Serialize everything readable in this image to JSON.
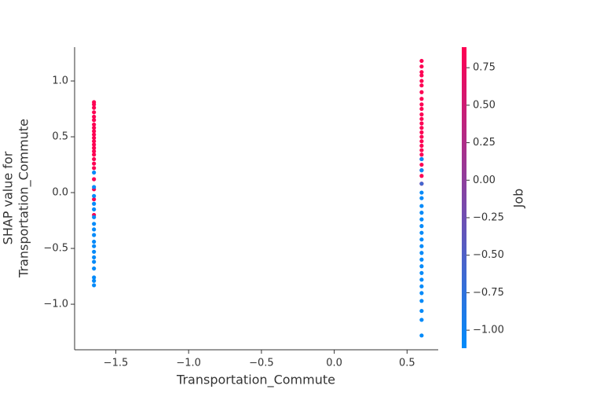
{
  "chart_data": {
    "type": "scatter",
    "xlabel": "Transportation_Commute",
    "ylabel_lines": [
      "SHAP value for",
      "Transportation_Commute"
    ],
    "colorbar_label": "Job",
    "colormap": [
      "#008bfb",
      "#ff0052"
    ],
    "xlim": [
      -1.783,
      0.714
    ],
    "ylim": [
      -1.408,
      1.303
    ],
    "clim": [
      -1.12,
      0.887
    ],
    "xticks": [
      {
        "value": -1.5,
        "label": "−1.5"
      },
      {
        "value": -1.0,
        "label": "−1.0"
      },
      {
        "value": -0.5,
        "label": "−0.5"
      },
      {
        "value": 0.0,
        "label": "0.0"
      },
      0.5
    ],
    "yticks": [
      {
        "value": -1.0,
        "label": "−1.0"
      },
      {
        "value": -0.5,
        "label": "−0.5"
      },
      {
        "value": 0.0,
        "label": "0.0"
      },
      0.5,
      {
        "value": 1.0,
        "label": "1.0"
      }
    ],
    "cticks": [
      {
        "value": -1.0,
        "label": "−1.00"
      },
      {
        "value": -0.75,
        "label": "−0.75"
      },
      {
        "value": -0.5,
        "label": "−0.50"
      },
      {
        "value": -0.25,
        "label": "−0.25"
      },
      {
        "value": 0.0,
        "label": "0.00"
      },
      0.25,
      {
        "value": 0.5,
        "label": "0.50"
      },
      0.75
    ],
    "x": [
      -1.65,
      -1.65,
      -1.65,
      -1.65,
      -1.65,
      -1.65,
      -1.65,
      -1.65,
      -1.65,
      -1.65,
      -1.65,
      -1.65,
      -1.65,
      -1.65,
      -1.65,
      -1.65,
      -1.65,
      -1.65,
      -1.65,
      -1.65,
      -1.65,
      -1.65,
      -1.65,
      -1.65,
      -1.65,
      -1.65,
      -1.65,
      -1.65,
      -1.65,
      -1.65,
      -1.65,
      -1.65,
      -1.65,
      -1.65,
      -1.65,
      -1.65,
      -1.65,
      -1.65,
      -1.65,
      -1.65,
      -1.65,
      0.6,
      0.6,
      0.6,
      0.6,
      0.6,
      0.6,
      0.6,
      0.6,
      0.6,
      0.6,
      0.6,
      0.6,
      0.6,
      0.6,
      0.6,
      0.6,
      0.6,
      0.6,
      0.6,
      0.6,
      0.6,
      0.6,
      0.6,
      0.6,
      0.6,
      0.6,
      0.6,
      0.6,
      0.6,
      0.6,
      0.6,
      0.6,
      0.6,
      0.6,
      0.6,
      0.6,
      0.6,
      0.6,
      0.6,
      0.6,
      0.6,
      0.6,
      0.6,
      0.6,
      0.6,
      0.6,
      0.6,
      0.6
    ],
    "y": [
      0.81,
      0.79,
      0.76,
      0.72,
      0.68,
      0.65,
      0.61,
      0.58,
      0.55,
      0.52,
      0.49,
      0.46,
      0.43,
      0.4,
      0.37,
      0.34,
      0.3,
      0.26,
      0.22,
      0.12,
      0.03,
      -0.06,
      -0.2,
      0.18,
      0.05,
      -0.03,
      -0.1,
      -0.15,
      -0.22,
      -0.28,
      -0.33,
      -0.38,
      -0.44,
      -0.48,
      -0.53,
      -0.58,
      -0.62,
      -0.68,
      -0.76,
      -0.79,
      -0.83,
      1.18,
      1.13,
      1.08,
      1.05,
      1.0,
      0.96,
      0.9,
      0.84,
      0.79,
      0.75,
      0.7,
      0.66,
      0.62,
      0.58,
      0.54,
      0.5,
      0.46,
      0.42,
      0.38,
      0.34,
      0.3,
      0.25,
      0.2,
      0.15,
      0.08,
      0.3,
      0.2,
      0.08,
      0.0,
      -0.05,
      -0.12,
      -0.18,
      -0.24,
      -0.3,
      -0.36,
      -0.42,
      -0.48,
      -0.54,
      -0.6,
      -0.66,
      -0.72,
      -0.78,
      -0.84,
      -0.9,
      -0.97,
      -1.06,
      -1.14,
      -1.28
    ],
    "color_values": [
      0.87,
      0.87,
      0.87,
      0.87,
      0.87,
      0.87,
      0.87,
      0.87,
      0.87,
      0.87,
      0.87,
      0.87,
      0.87,
      0.87,
      0.87,
      0.87,
      0.87,
      0.87,
      0.87,
      0.87,
      0.87,
      0.87,
      0.87,
      -1.1,
      -1.1,
      -1.1,
      -1.1,
      -1.1,
      -1.1,
      -1.1,
      -1.1,
      -1.1,
      -1.1,
      -1.1,
      -1.1,
      -1.1,
      -1.1,
      -1.1,
      -1.1,
      -1.1,
      -1.1,
      0.87,
      0.87,
      0.87,
      0.87,
      0.87,
      0.87,
      0.87,
      0.87,
      0.87,
      0.87,
      0.87,
      0.87,
      0.87,
      0.87,
      0.87,
      0.87,
      0.87,
      0.87,
      0.87,
      0.87,
      0.87,
      0.87,
      0.87,
      0.87,
      0.87,
      -1.1,
      -1.1,
      -0.6,
      -1.1,
      -1.1,
      -1.1,
      -1.1,
      -1.1,
      -1.1,
      -1.1,
      -1.1,
      -1.1,
      -1.1,
      -1.1,
      -1.1,
      -1.1,
      -1.1,
      -1.1,
      -1.1,
      -1.1,
      -1.1,
      -1.1,
      -1.1
    ]
  }
}
